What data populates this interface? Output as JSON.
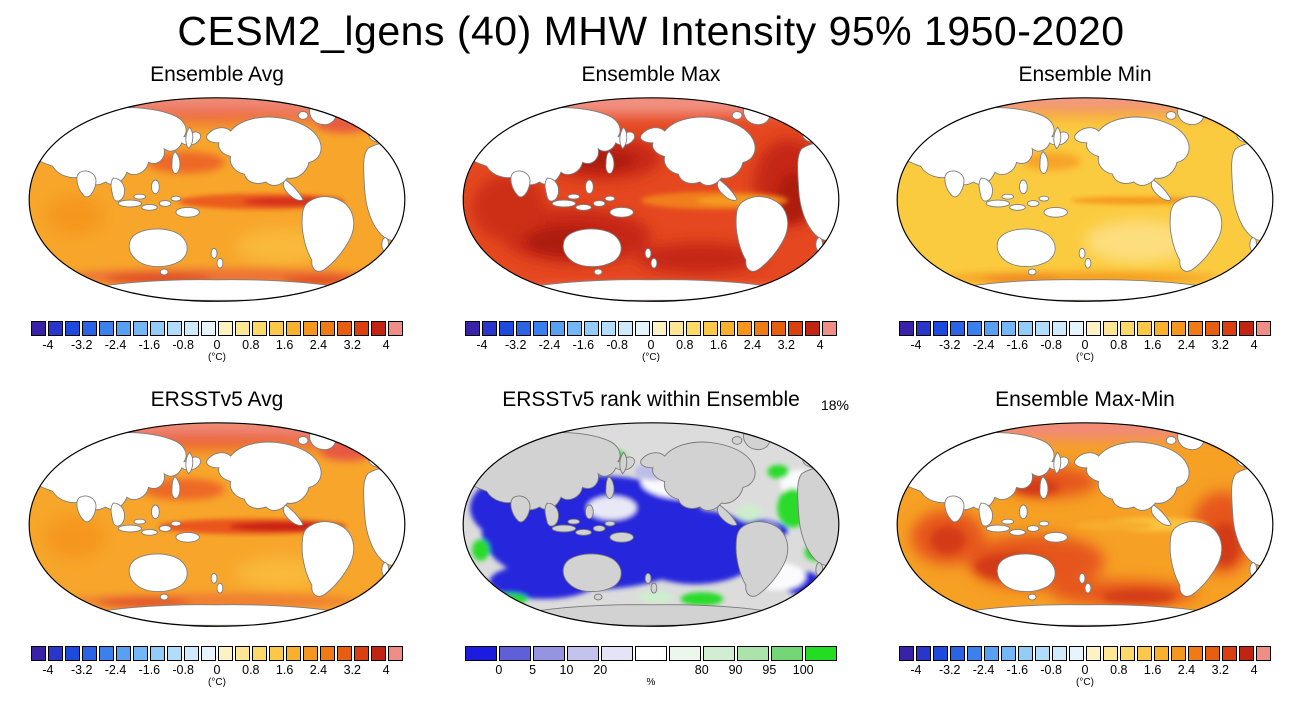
{
  "title": "CESM2_lgens (40) MHW Intensity 95% 1950-2020",
  "panels": [
    {
      "id": "ensemble-avg",
      "title": "Ensemble Avg",
      "colorbar": "temperature"
    },
    {
      "id": "ensemble-max",
      "title": "Ensemble Max",
      "colorbar": "temperature"
    },
    {
      "id": "ensemble-min",
      "title": "Ensemble Min",
      "colorbar": "temperature"
    },
    {
      "id": "ersstv5-avg",
      "title": "ERSSTv5 Avg",
      "colorbar": "temperature"
    },
    {
      "id": "ersstv5-rank",
      "title": "ERSSTv5 rank within Ensemble",
      "colorbar": "rank",
      "annotation": "18%"
    },
    {
      "id": "ensemble-max-min",
      "title": "Ensemble Max-Min",
      "colorbar": "temperature"
    }
  ],
  "colorbars": {
    "temperature": {
      "unit": "(°C)",
      "segments": 22,
      "colors": [
        "#3a22a8",
        "#2a35cc",
        "#1e49dd",
        "#2a63e6",
        "#3c80ee",
        "#58a0f2",
        "#74b7f6",
        "#93cbf9",
        "#b2dcfb",
        "#cfeafd",
        "#e6f4fe",
        "#fdf2c4",
        "#fde795",
        "#fdd96a",
        "#fcc84a",
        "#f9b02c",
        "#f4971f",
        "#ee7b15",
        "#e65f10",
        "#da400f",
        "#c22414",
        "#ef8e86"
      ],
      "ticks": [
        {
          "label": "-4",
          "pos": 1
        },
        {
          "label": "-3.2",
          "pos": 3
        },
        {
          "label": "-2.4",
          "pos": 5
        },
        {
          "label": "-1.6",
          "pos": 7
        },
        {
          "label": "-0.8",
          "pos": 9
        },
        {
          "label": "0",
          "pos": 11
        },
        {
          "label": "0.8",
          "pos": 13
        },
        {
          "label": "1.6",
          "pos": 15
        },
        {
          "label": "2.4",
          "pos": 17
        },
        {
          "label": "3.2",
          "pos": 19
        },
        {
          "label": "4",
          "pos": 21
        }
      ]
    },
    "rank": {
      "unit": "%",
      "segments": 11,
      "colors": [
        "#1c1cdf",
        "#5f5fd8",
        "#9494e0",
        "#c3c3ee",
        "#e4e4f7",
        "#ffffff",
        "#eaf7ea",
        "#d2eed2",
        "#abe3ab",
        "#74d674",
        "#22dd22"
      ],
      "ticks": [
        {
          "label": "0",
          "pos": 1
        },
        {
          "label": "5",
          "pos": 2
        },
        {
          "label": "10",
          "pos": 3
        },
        {
          "label": "20",
          "pos": 4
        },
        {
          "label": "80",
          "pos": 7
        },
        {
          "label": "90",
          "pos": 8
        },
        {
          "label": "95",
          "pos": 9
        },
        {
          "label": "100",
          "pos": 10
        }
      ]
    }
  },
  "chart_data": {
    "type": "heatmap",
    "title": "CESM2_lgens (40) MHW Intensity 95% 1950-2020",
    "layout": {
      "rows": 2,
      "cols": 3,
      "projection": "global oval (Robinson-like), Pacific-centered",
      "legend_position": "below each panel"
    },
    "panels": [
      {
        "title": "Ensemble Avg",
        "unit": "°C",
        "levels": [
          -4,
          -3.2,
          -2.4,
          -1.6,
          -0.8,
          0,
          0.8,
          1.6,
          2.4,
          3.2,
          4
        ],
        "summary": "MHW intensity ensemble average: mostly 1.2-2.4; maxima ~2.8-3.6 along equatorial east Pacific tongue, NW Pacific, Southern Ocean band and polar edges"
      },
      {
        "title": "Ensemble Max",
        "unit": "°C",
        "levels": [
          -4,
          -3.2,
          -2.4,
          -1.6,
          -0.8,
          0,
          0.8,
          1.6,
          2.4,
          3.2,
          4
        ],
        "summary": "Ensemble maximum: mostly 2.4-4; large dark-red (>3.2) areas in NW/SW Pacific, Atlantic, Indian Ocean; lighter ~2 tongue in equatorial east Pacific; >4 at polar edges"
      },
      {
        "title": "Ensemble Min",
        "unit": "°C",
        "levels": [
          -4,
          -3.2,
          -2.4,
          -1.6,
          -0.8,
          0,
          0.8,
          1.6,
          2.4,
          3.2,
          4
        ],
        "summary": "Ensemble minimum: mostly 0.8-1.6 (yellow); slightly higher ~2 in NW Pacific, equatorial east Pacific line and Southern Ocean; pink >3.6 at very top edge"
      },
      {
        "title": "ERSSTv5 Avg",
        "unit": "°C",
        "levels": [
          -4,
          -3.2,
          -2.4,
          -1.6,
          -0.8,
          0,
          0.8,
          1.6,
          2.4,
          3.2,
          4
        ],
        "summary": "Observed ERSSTv5 average: similar to ensemble average with stronger equatorial east Pacific tongue (~3.2) and red subpolar band"
      },
      {
        "title": "ERSSTv5 rank within Ensemble",
        "unit": "%",
        "levels": [
          0,
          5,
          10,
          20,
          80,
          90,
          95,
          100
        ],
        "annotation": "18%",
        "summary": "Percentile rank of observations within ensemble: most of Pacific and Indian Ocean below 5% (blue); white 20-80% patches in NE Pacific; green >90-100% patches mainly in Atlantic, marginal seas and Sea of Okhotsk; land grey; 18% noted top-right"
      },
      {
        "title": "Ensemble Max-Min",
        "unit": "°C",
        "levels": [
          -4,
          -3.2,
          -2.4,
          -1.6,
          -0.8,
          0,
          0.8,
          1.6,
          2.4,
          3.2,
          4
        ],
        "summary": "Ensemble spread (max minus min): mostly 1.6-3.2 with red-orange blobs in mid-latitude Pacific, Atlantic, Indian and Southern Oceans; lighter ~1.2 equatorial east Pacific band; pink polar edges"
      }
    ]
  }
}
